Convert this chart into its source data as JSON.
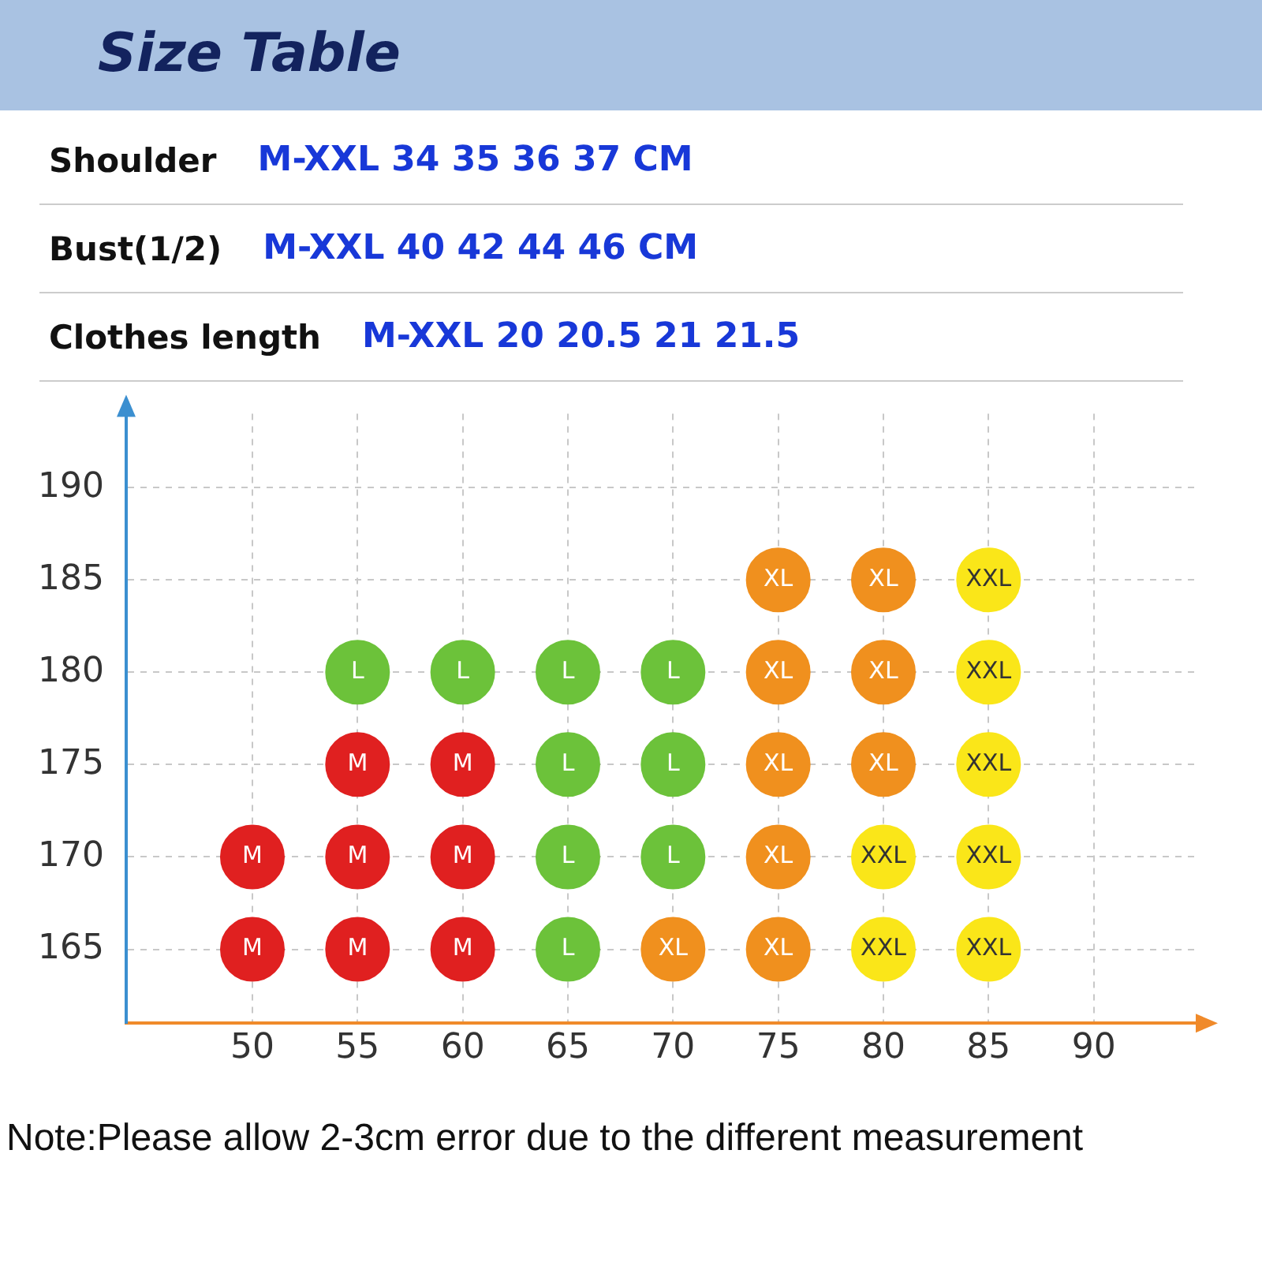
{
  "chart_data": {
    "type": "scatter",
    "title": "Size Table",
    "annotations": [
      "Shoulder",
      "M-XXL 34 35 36 37 CM",
      "Bust(1/2)",
      "M-XXL 40 42 44 46 CM",
      "Clothes length",
      "M-XXL 20 20.5 21 21.5",
      "Note:Please allow 2-3cm error due to the different measurement"
    ],
    "series": [
      {
        "name": "M",
        "color": "#e02020",
        "x": [
          50,
          50,
          55,
          55,
          55,
          60,
          60,
          60
        ],
        "values": [
          170,
          165,
          175,
          170,
          165,
          175,
          170,
          165
        ]
      },
      {
        "name": "L",
        "color": "#6cc23a",
        "x": [
          55,
          60,
          65,
          70,
          65,
          70,
          65,
          70,
          65
        ],
        "values": [
          180,
          180,
          180,
          180,
          175,
          175,
          170,
          170,
          165
        ]
      },
      {
        "name": "XL",
        "color": "#f0901e",
        "x": [
          75,
          80,
          75,
          80,
          75,
          80,
          75,
          70,
          75
        ],
        "values": [
          185,
          185,
          180,
          180,
          175,
          175,
          170,
          165,
          165
        ]
      },
      {
        "name": "XXL",
        "color": "#fae619",
        "x": [
          85,
          85,
          85,
          80,
          85,
          80,
          85
        ],
        "values": [
          185,
          180,
          175,
          170,
          170,
          165,
          165
        ]
      }
    ],
    "xlim": [
      44,
      95
    ],
    "xticks": [
      50,
      55,
      60,
      65,
      70,
      75,
      80,
      85,
      90
    ],
    "ylim": [
      161,
      194
    ],
    "yticks": [
      165,
      170,
      175,
      180,
      185,
      190
    ],
    "grid": true,
    "legend": false,
    "marker": "circle"
  }
}
